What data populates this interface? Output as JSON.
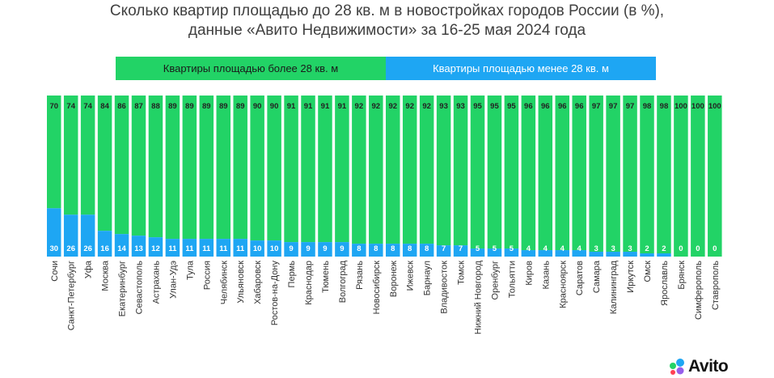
{
  "title_lines": [
    "Сколько квартир площадью до 28 кв. м в новостройках городов России (в %),",
    "данные «Авито Недвижимости» за 16-25 мая 2024 года"
  ],
  "colors": {
    "large": "#22d366",
    "small": "#1ea6f3",
    "label": "#222222",
    "label_small": "#ffffff"
  },
  "legend": [
    {
      "name": "Квартиры площадью более 28 кв. м",
      "color": "#22d366"
    },
    {
      "name": "Квартиры площадью менее 28 кв. м",
      "color": "#1ea6f3"
    }
  ],
  "logo": {
    "text": "Avito"
  },
  "chart_data": {
    "type": "bar",
    "stacked": true,
    "ylim": [
      0,
      100
    ],
    "grid": false,
    "legend_position": "top",
    "categories": [
      "Сочи",
      "Санкт-Петербург",
      "Уфа",
      "Москва",
      "Екатеринбург",
      "Севастополь",
      "Астрахань",
      "Улан-Удэ",
      "Тула",
      "Россия",
      "Челябинск",
      "Ульяновск",
      "Хабаровск",
      "Ростов-на-Дону",
      "Пермь",
      "Краснодар",
      "Тюмень",
      "Волгоград",
      "Рязань",
      "Новосибирск",
      "Воронеж",
      "Ижевск",
      "Барнаул",
      "Владивосток",
      "Томск",
      "Нижний Новгород",
      "Оренбург",
      "Тольятти",
      "Киров",
      "Казань",
      "Красноярск",
      "Саратов",
      "Самара",
      "Калининград",
      "Иркутск",
      "Омск",
      "Ярославль",
      "Брянск",
      "Симферополь",
      "Ставрополь"
    ],
    "series": [
      {
        "name": "Квартиры площадью менее 28 кв. м",
        "values": [
          30,
          26,
          26,
          16,
          14,
          13,
          12,
          11,
          11,
          11,
          11,
          11,
          10,
          10,
          9,
          9,
          9,
          9,
          8,
          8,
          8,
          8,
          8,
          7,
          7,
          5,
          5,
          5,
          4,
          4,
          4,
          4,
          3,
          3,
          3,
          2,
          2,
          0,
          0,
          0
        ]
      },
      {
        "name": "Квартиры площадью более 28 кв. м",
        "values": [
          70,
          74,
          74,
          84,
          86,
          87,
          88,
          89,
          89,
          89,
          89,
          89,
          90,
          90,
          91,
          91,
          91,
          91,
          92,
          92,
          92,
          92,
          92,
          93,
          93,
          95,
          95,
          95,
          96,
          96,
          96,
          96,
          97,
          97,
          97,
          98,
          98,
          100,
          100,
          100
        ]
      }
    ]
  }
}
